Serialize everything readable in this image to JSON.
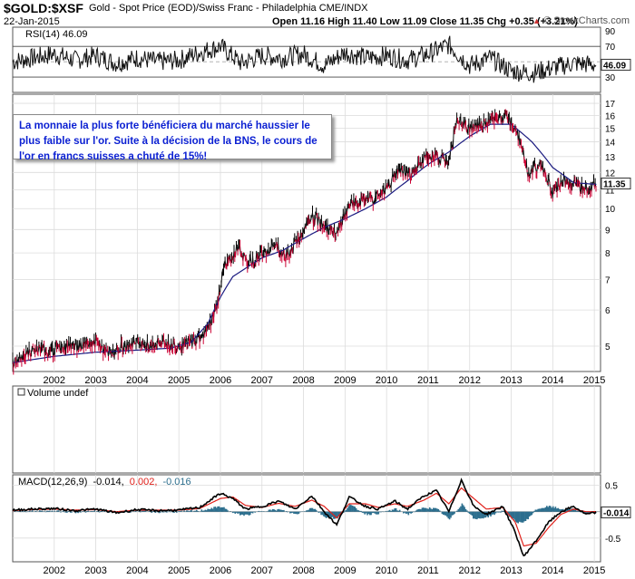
{
  "header": {
    "symbol": "$GOLD:$XSF",
    "subtitle": "Gold - Spot Price (EOD)/Swiss Franc - Philadelphia  CME/INDX",
    "date": "22-Jan-2015",
    "ohlc": "Open 11.16  High 11.40  Low 11.09  Close 11.35  Chg +0.35 (+3.21%)",
    "credit": "© StockCharts.com",
    "credit_arrow": "▲"
  },
  "annotation": {
    "text": "La monnaie la plus forte bénéficiera du marché haussier le plus faible sur l'or. Suite à la décision de la BNS, le cours de l'or en francs suisses a chuté de 15%!"
  },
  "colors": {
    "price": "#222222",
    "up": "#000000",
    "down": "#cc0033",
    "ma": "#1a1a80",
    "macd": "#000000",
    "signal": "#e0201a",
    "hist": "#2d6f8e",
    "grid": "#d8d8d8",
    "annotation_text": "#0a1fd2"
  },
  "chart_data": [
    {
      "type": "line",
      "panel": "rsi",
      "label": "RSI(14) 46.09",
      "last_value": "46.09",
      "y_ticks": [
        "90",
        "70",
        "50",
        "30"
      ],
      "ylim": [
        10,
        95
      ],
      "reference_lines": [
        70,
        30
      ],
      "x": [
        2001.0,
        2001.5,
        2002.0,
        2002.5,
        2003.0,
        2003.5,
        2004.0,
        2004.5,
        2005.0,
        2005.5,
        2006.0,
        2006.5,
        2007.0,
        2007.5,
        2008.0,
        2008.5,
        2009.0,
        2009.5,
        2010.0,
        2010.5,
        2011.0,
        2011.5,
        2012.0,
        2012.5,
        2013.0,
        2013.5,
        2014.0,
        2014.5,
        2015.05
      ],
      "values": [
        50,
        55,
        60,
        52,
        58,
        48,
        55,
        50,
        52,
        62,
        70,
        48,
        58,
        55,
        60,
        45,
        62,
        55,
        58,
        52,
        60,
        72,
        45,
        55,
        38,
        35,
        42,
        48,
        46
      ]
    },
    {
      "type": "line",
      "panel": "price",
      "scale": "log",
      "series": [
        {
          "name": "price",
          "x": [
            2001.0,
            2001.3,
            2001.6,
            2002.0,
            2002.3,
            2002.6,
            2003.0,
            2003.3,
            2003.6,
            2004.0,
            2004.3,
            2004.6,
            2005.0,
            2005.3,
            2005.6,
            2005.9,
            2006.1,
            2006.4,
            2006.7,
            2007.0,
            2007.3,
            2007.6,
            2007.9,
            2008.2,
            2008.5,
            2008.8,
            2009.1,
            2009.4,
            2009.7,
            2010.0,
            2010.3,
            2010.6,
            2010.9,
            2011.2,
            2011.5,
            2011.7,
            2012.0,
            2012.3,
            2012.6,
            2012.9,
            2013.2,
            2013.4,
            2013.7,
            2014.0,
            2014.3,
            2014.6,
            2014.9,
            2015.05
          ],
          "values": [
            4.6,
            4.8,
            4.9,
            4.9,
            5.0,
            5.0,
            5.1,
            4.8,
            5.0,
            5.1,
            5.0,
            5.1,
            5.0,
            5.1,
            5.3,
            6.0,
            7.5,
            8.2,
            7.6,
            8.0,
            8.3,
            7.9,
            8.6,
            9.6,
            9.2,
            8.7,
            10.2,
            10.4,
            10.5,
            11.0,
            12.2,
            11.8,
            13.0,
            13.0,
            12.5,
            15.8,
            15.0,
            15.2,
            15.6,
            16.0,
            14.2,
            12.0,
            12.5,
            10.8,
            11.5,
            11.2,
            11.0,
            11.35
          ]
        },
        {
          "name": "ma",
          "x": [
            2001.0,
            2002.0,
            2003.0,
            2004.0,
            2004.8,
            2005.3,
            2005.7,
            2006.0,
            2006.3,
            2006.7,
            2007.0,
            2007.5,
            2008.0,
            2008.5,
            2009.0,
            2009.5,
            2010.0,
            2010.5,
            2011.0,
            2011.5,
            2012.0,
            2012.5,
            2013.0,
            2013.5,
            2014.0,
            2014.5,
            2015.05
          ],
          "values": [
            4.6,
            4.75,
            4.85,
            4.9,
            4.95,
            5.1,
            5.6,
            6.4,
            7.1,
            7.5,
            7.8,
            8.1,
            8.6,
            9.1,
            9.5,
            10.0,
            10.6,
            11.5,
            12.5,
            13.3,
            14.4,
            15.3,
            15.3,
            14.0,
            12.3,
            11.4,
            11.3
          ]
        }
      ],
      "last_value": "11.35",
      "y_ticks": [
        "17",
        "16",
        "15",
        "14",
        "13",
        "12",
        "11",
        "10",
        "9",
        "8",
        "7",
        "6",
        "5"
      ],
      "x_ticks": [
        "2002",
        "2003",
        "2004",
        "2005",
        "2006",
        "2007",
        "2008",
        "2009",
        "2010",
        "2011",
        "2012",
        "2013",
        "2014",
        "2015"
      ],
      "ylim": [
        4.4,
        17.8
      ]
    },
    {
      "type": "bar",
      "panel": "volume",
      "label": "Volume undef",
      "values": []
    },
    {
      "type": "line",
      "panel": "macd",
      "label_prefix": "MACD(12,26,9)",
      "macd_value": "-0.014,",
      "signal_value": "0.002,",
      "hist_value": "-0.016",
      "last_value": "-0.014",
      "y_ticks": [
        "0.5",
        "-0.5"
      ],
      "x_ticks": [
        "2002",
        "2003",
        "2004",
        "2005",
        "2006",
        "2007",
        "2008",
        "2009",
        "2010",
        "2011",
        "2012",
        "2013",
        "2014",
        "2015"
      ],
      "ylim": [
        -0.95,
        0.7
      ],
      "x": [
        2001.0,
        2001.5,
        2002.0,
        2002.5,
        2003.0,
        2003.5,
        2004.0,
        2004.5,
        2005.0,
        2005.5,
        2006.0,
        2006.3,
        2006.6,
        2007.0,
        2007.4,
        2007.8,
        2008.2,
        2008.5,
        2008.8,
        2009.1,
        2009.5,
        2009.8,
        2010.2,
        2010.5,
        2010.9,
        2011.2,
        2011.5,
        2011.8,
        2012.1,
        2012.4,
        2012.8,
        2013.1,
        2013.3,
        2013.6,
        2013.9,
        2014.2,
        2014.5,
        2014.8,
        2015.05
      ],
      "series": [
        {
          "name": "macd",
          "values": [
            0.03,
            0.05,
            0.06,
            0.02,
            0.05,
            -0.02,
            0.04,
            0.02,
            0.03,
            0.08,
            0.35,
            0.25,
            0.05,
            0.1,
            0.2,
            0.05,
            0.3,
            0.0,
            -0.25,
            0.28,
            0.1,
            0.05,
            0.2,
            0.05,
            0.3,
            0.4,
            0.0,
            0.6,
            0.1,
            -0.05,
            0.1,
            -0.4,
            -0.85,
            -0.55,
            -0.2,
            0.0,
            0.1,
            -0.05,
            -0.014
          ]
        },
        {
          "name": "signal",
          "values": [
            0.02,
            0.04,
            0.05,
            0.03,
            0.04,
            0.0,
            0.03,
            0.03,
            0.03,
            0.06,
            0.25,
            0.28,
            0.12,
            0.08,
            0.16,
            0.1,
            0.22,
            0.1,
            -0.12,
            0.15,
            0.15,
            0.08,
            0.15,
            0.1,
            0.22,
            0.35,
            0.15,
            0.45,
            0.25,
            0.05,
            0.08,
            -0.2,
            -0.65,
            -0.6,
            -0.3,
            -0.05,
            0.05,
            0.0,
            0.002
          ]
        }
      ]
    }
  ]
}
